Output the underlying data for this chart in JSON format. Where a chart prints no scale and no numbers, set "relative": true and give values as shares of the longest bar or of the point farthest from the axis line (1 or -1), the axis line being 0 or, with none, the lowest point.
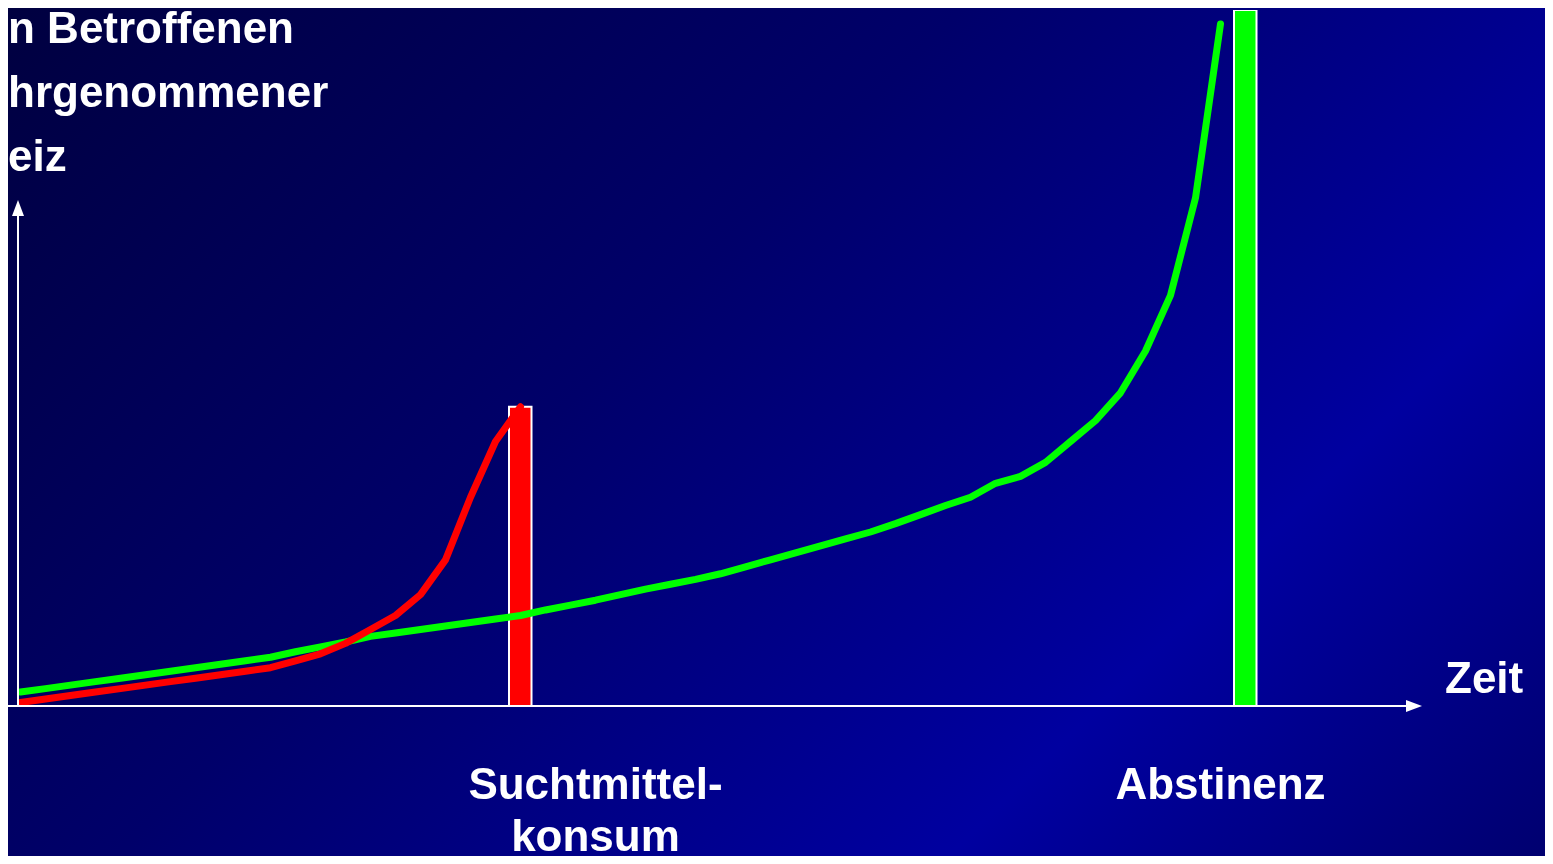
{
  "chart_data": {
    "type": "line",
    "xlabel": "Zeit",
    "ylabel": "n Betroffenen\nhrgenommener\neiz",
    "relative": true,
    "grid": false,
    "legend": false,
    "marker": "none",
    "line_style": "solid",
    "categories": [
      null,
      null,
      null,
      null,
      null,
      null,
      null,
      null,
      null,
      null,
      null,
      null,
      null,
      null,
      null,
      null,
      null,
      null,
      null,
      null,
      null,
      null,
      null,
      "Suchtmittel-konsum",
      null,
      null,
      null,
      null,
      null,
      null,
      null,
      null,
      null,
      null,
      null,
      null,
      null,
      null,
      null,
      null,
      null,
      null,
      null,
      null,
      null,
      null,
      null,
      null,
      "Abstinenz",
      null,
      null,
      null,
      null,
      null,
      null,
      null
    ],
    "series": [
      {
        "color": "#00ff00",
        "values": [
          0.02,
          0.025,
          0.03,
          0.035,
          0.04,
          0.045,
          0.05,
          0.055,
          0.06,
          0.065,
          0.07,
          0.078,
          0.085,
          0.092,
          0.1,
          0.105,
          0.11,
          0.115,
          0.12,
          0.125,
          0.13,
          0.138,
          0.145,
          0.152,
          0.16,
          0.168,
          0.175,
          0.182,
          0.19,
          0.2,
          0.21,
          0.22,
          0.23,
          0.24,
          0.25,
          0.262,
          0.275,
          0.288,
          0.3,
          0.32,
          0.33,
          0.35,
          0.38,
          0.41,
          0.45,
          0.51,
          0.59,
          0.73,
          0.98,
          null,
          null,
          null,
          null,
          null,
          null,
          null
        ]
      },
      {
        "color": "#ff0000",
        "values": [
          0.005,
          0.01,
          0.015,
          0.02,
          0.025,
          0.03,
          0.035,
          0.04,
          0.045,
          0.05,
          0.055,
          0.065,
          0.075,
          0.09,
          0.11,
          0.13,
          0.16,
          0.21,
          0.3,
          0.38,
          0.43,
          null,
          null,
          null,
          null,
          null,
          null,
          null,
          null,
          null,
          null,
          null,
          null,
          null,
          null,
          null,
          null,
          null,
          null,
          null,
          null,
          null,
          null,
          null,
          null,
          null,
          null,
          null,
          null,
          null,
          null,
          null,
          null,
          null,
          null,
          null
        ]
      },
      {
        "type": "bar",
        "color": "#ff0000",
        "values": [
          null,
          null,
          null,
          null,
          null,
          null,
          null,
          null,
          null,
          null,
          null,
          null,
          null,
          null,
          null,
          null,
          null,
          null,
          null,
          null,
          0.43,
          null,
          null,
          null,
          null,
          null,
          null,
          null,
          null,
          null,
          null,
          null,
          null,
          null,
          null,
          null,
          null,
          null,
          null,
          null,
          null,
          null,
          null,
          null,
          null,
          null,
          null,
          null,
          null,
          null,
          null,
          null,
          null,
          null,
          null,
          null
        ]
      },
      {
        "type": "bar",
        "color": "#00ff00",
        "values": [
          null,
          null,
          null,
          null,
          null,
          null,
          null,
          null,
          null,
          null,
          null,
          null,
          null,
          null,
          null,
          null,
          null,
          null,
          null,
          null,
          null,
          null,
          null,
          null,
          null,
          null,
          null,
          null,
          null,
          null,
          null,
          null,
          null,
          null,
          null,
          null,
          null,
          null,
          null,
          null,
          null,
          null,
          null,
          null,
          null,
          null,
          null,
          null,
          null,
          1,
          null,
          null,
          null,
          null,
          null,
          null
        ]
      }
    ]
  }
}
